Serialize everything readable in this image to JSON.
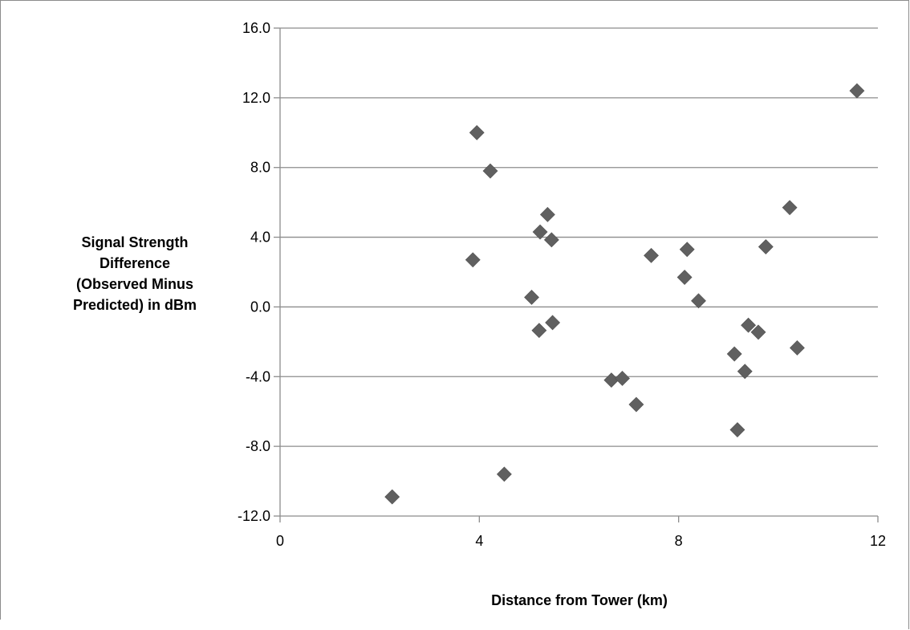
{
  "chart_data": {
    "type": "scatter",
    "xlabel": "Distance from Tower (km)",
    "ylabel_lines": [
      "Signal Strength",
      "Difference",
      "(Observed Minus",
      "Predicted) in dBm"
    ],
    "xlim": [
      0,
      12
    ],
    "ylim": [
      -12,
      16
    ],
    "x_ticks": [
      0,
      4,
      8,
      12
    ],
    "x_tick_labels": [
      "0",
      "4",
      "8",
      "12"
    ],
    "y_ticks": [
      -12,
      -8,
      -4,
      0,
      4,
      8,
      12,
      16
    ],
    "y_tick_labels": [
      "-12.0",
      "-8.0",
      "-4.0",
      "0.0",
      "4.0",
      "8.0",
      "12.0",
      "16.0"
    ],
    "grid": "horizontal",
    "legend": "none",
    "marker": "diamond",
    "marker_color": "#606060",
    "points": [
      {
        "x": 2.25,
        "y": -10.9
      },
      {
        "x": 3.87,
        "y": 2.7
      },
      {
        "x": 3.95,
        "y": 10.0
      },
      {
        "x": 4.22,
        "y": 7.8
      },
      {
        "x": 4.5,
        "y": -9.6
      },
      {
        "x": 5.05,
        "y": 0.55
      },
      {
        "x": 5.2,
        "y": -1.35
      },
      {
        "x": 5.22,
        "y": 4.3
      },
      {
        "x": 5.37,
        "y": 5.3
      },
      {
        "x": 5.45,
        "y": 3.85
      },
      {
        "x": 5.47,
        "y": -0.9
      },
      {
        "x": 6.65,
        "y": -4.2
      },
      {
        "x": 6.87,
        "y": -4.1
      },
      {
        "x": 7.15,
        "y": -5.6
      },
      {
        "x": 7.45,
        "y": 2.95
      },
      {
        "x": 8.12,
        "y": 1.7
      },
      {
        "x": 8.17,
        "y": 3.3
      },
      {
        "x": 8.4,
        "y": 0.35
      },
      {
        "x": 9.12,
        "y": -2.7
      },
      {
        "x": 9.18,
        "y": -7.05
      },
      {
        "x": 9.33,
        "y": -3.7
      },
      {
        "x": 9.4,
        "y": -1.05
      },
      {
        "x": 9.6,
        "y": -1.45
      },
      {
        "x": 9.75,
        "y": 3.45
      },
      {
        "x": 10.23,
        "y": 5.7
      },
      {
        "x": 10.38,
        "y": -2.35
      },
      {
        "x": 11.58,
        "y": 12.4
      }
    ]
  }
}
